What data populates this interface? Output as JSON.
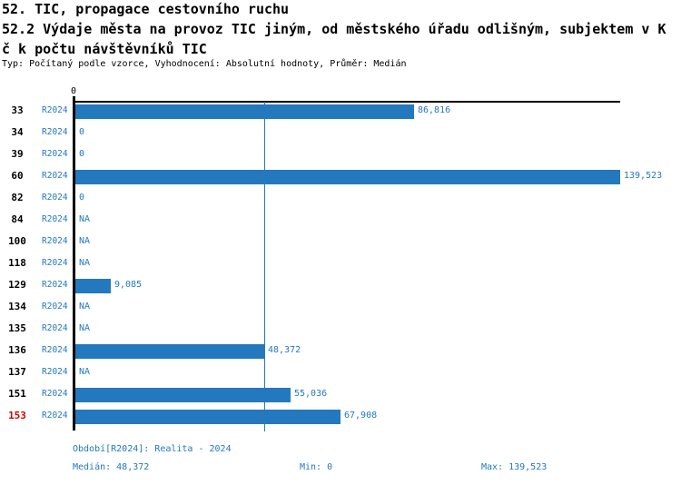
{
  "header": {
    "line1": "52. TIC, propagace cestovního ruchu",
    "line2": "52.2 Výdaje města na provoz TIC jiným, od městského úřadu odlišným, subjektem v K",
    "line3": "č k počtu návštěvníků TIC",
    "subtitle": "Typ: Počítaný podle vzorce, Vyhodnocení: Absolutní hodnoty, Průměr: Medián"
  },
  "chart_data": {
    "type": "bar",
    "orientation": "horizontal",
    "axis_top_label": "0",
    "series_name": "R2024",
    "xlim": [
      0,
      139523
    ],
    "median_value": 48372,
    "grid": false,
    "rows": [
      {
        "id": "33",
        "value": 86816,
        "label": "86,816",
        "highlight": false
      },
      {
        "id": "34",
        "value": 0,
        "label": "0",
        "highlight": false
      },
      {
        "id": "39",
        "value": 0,
        "label": "0",
        "highlight": false
      },
      {
        "id": "60",
        "value": 139523,
        "label": "139,523",
        "highlight": false
      },
      {
        "id": "82",
        "value": 0,
        "label": "0",
        "highlight": false
      },
      {
        "id": "84",
        "value": null,
        "label": "NA",
        "highlight": false
      },
      {
        "id": "100",
        "value": null,
        "label": "NA",
        "highlight": false
      },
      {
        "id": "118",
        "value": null,
        "label": "NA",
        "highlight": false
      },
      {
        "id": "129",
        "value": 9085,
        "label": "9,085",
        "highlight": false
      },
      {
        "id": "134",
        "value": null,
        "label": "NA",
        "highlight": false
      },
      {
        "id": "135",
        "value": null,
        "label": "NA",
        "highlight": false
      },
      {
        "id": "136",
        "value": 48372,
        "label": "48,372",
        "highlight": false
      },
      {
        "id": "137",
        "value": null,
        "label": "NA",
        "highlight": false
      },
      {
        "id": "151",
        "value": 55036,
        "label": "55,036",
        "highlight": false
      },
      {
        "id": "153",
        "value": 67908,
        "label": "67,908",
        "highlight": true
      }
    ]
  },
  "footer": {
    "period": "Období[R2024]: Realita - 2024",
    "median": "Medián: 48,372",
    "min": "Min: 0",
    "max": "Max: 139,523"
  },
  "colors": {
    "bar_blue": "#2478BE",
    "text_blue": "#2478BE",
    "highlight_red": "#D10000",
    "axis_black": "#000000"
  }
}
